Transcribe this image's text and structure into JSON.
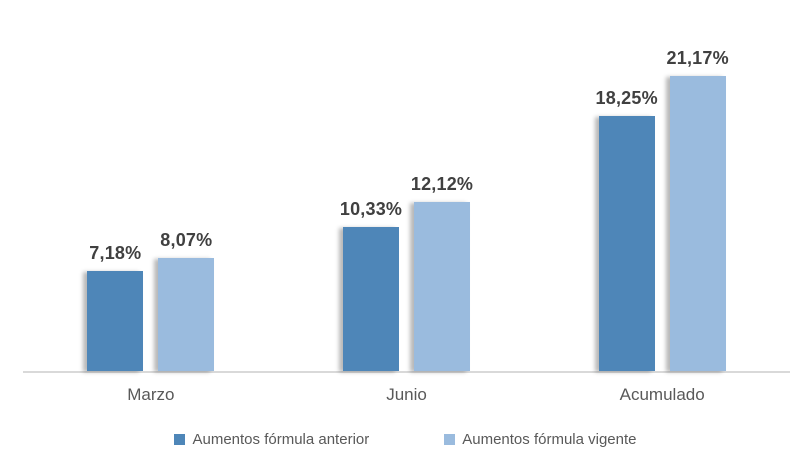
{
  "chart_data": {
    "type": "bar",
    "title": "",
    "xlabel": "",
    "ylabel": "",
    "categories": [
      "Marzo",
      "Junio",
      "Acumulado"
    ],
    "series": [
      {
        "name": "Aumentos fórmula anterior",
        "color": "#4E86B8",
        "values": [
          7.18,
          10.33,
          18.25
        ],
        "labels": [
          "7,18%",
          "10,33%",
          "18,25%"
        ]
      },
      {
        "name": "Aumentos fórmula vigente",
        "color": "#9ABBDE",
        "values": [
          8.07,
          12.12,
          21.17
        ],
        "labels": [
          "8,07%",
          "12,12%",
          "21,17%"
        ]
      }
    ],
    "ylim": [
      0,
      25
    ],
    "y_axis_visible": false,
    "grid": false,
    "legend_position": "bottom",
    "value_label_decimal_separator": ","
  },
  "colors": {
    "background": "#FFFFFF",
    "axis_line": "#D9D9D9",
    "data_label_text": "#404040",
    "axis_text": "#595959",
    "legend_text": "#595959",
    "series_anterior": "#4E86B8",
    "series_vigente": "#9ABBDE"
  }
}
